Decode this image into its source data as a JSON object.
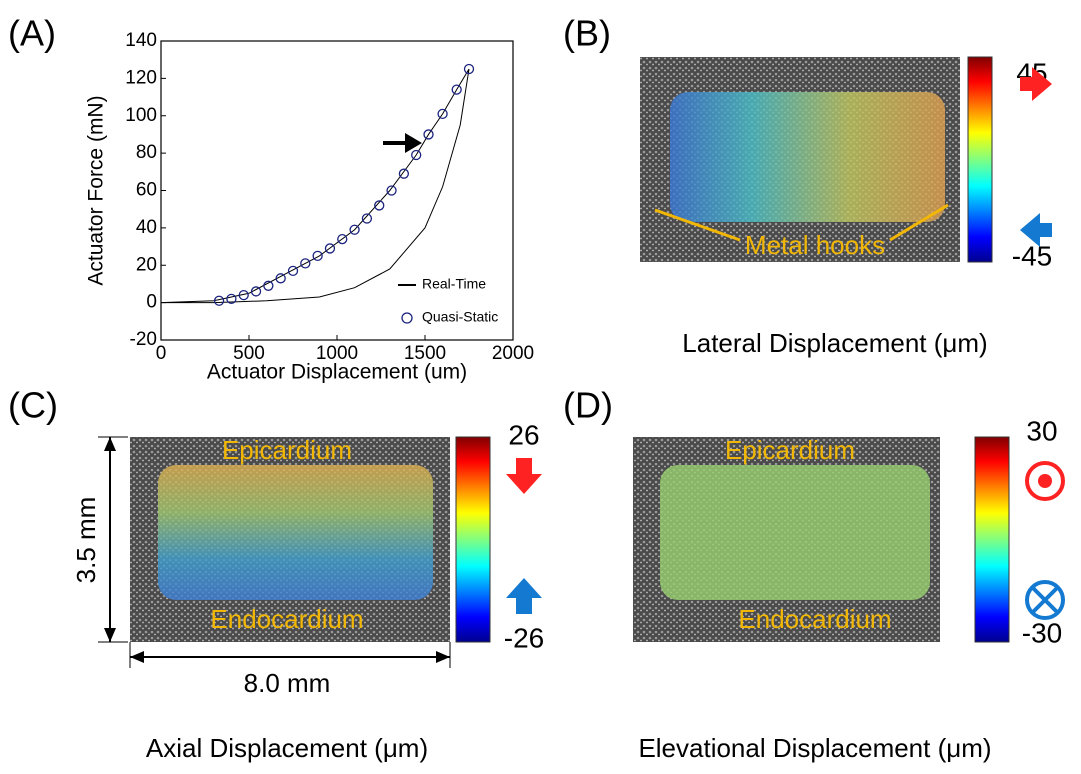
{
  "chart_data": {
    "type": "line",
    "x_label": "Actuator Displacement (um)",
    "y_label": "Actuator Force (mN)",
    "xlim": [
      0,
      2000
    ],
    "xticks": [
      0,
      500,
      1000,
      1500,
      2000
    ],
    "ylim": [
      -20,
      140
    ],
    "yticks": [
      -20,
      0,
      20,
      40,
      60,
      80,
      100,
      120,
      140
    ],
    "legend": "lower right",
    "series": [
      {
        "name": "Real-Time",
        "color": "#000000",
        "style": "line",
        "x": [
          0,
          300,
          500,
          700,
          900,
          1100,
          1300,
          1450,
          1520,
          1600,
          1680,
          1750,
          1700,
          1600,
          1500,
          1300,
          1100,
          900,
          600,
          300,
          0
        ],
        "values": [
          0,
          1,
          5,
          15,
          25,
          39,
          60,
          79,
          90,
          101,
          114,
          125,
          95,
          62,
          40,
          18,
          8,
          3,
          1,
          0,
          0
        ]
      },
      {
        "name": "Quasi-Static",
        "color": "#1a237e",
        "style": "marker",
        "x": [
          330,
          400,
          470,
          540,
          610,
          680,
          750,
          820,
          890,
          960,
          1030,
          1100,
          1170,
          1240,
          1310,
          1380,
          1450,
          1520,
          1600,
          1680,
          1750
        ],
        "values": [
          1,
          2,
          4,
          6,
          9,
          13,
          17,
          21,
          25,
          29,
          34,
          39,
          45,
          52,
          60,
          69,
          79,
          90,
          101,
          114,
          125
        ]
      }
    ]
  },
  "panels": [
    {
      "label": "(A)"
    },
    {
      "label": "(B)",
      "caption": "Lateral Displacement (μm)",
      "colorbar": {
        "max": 45,
        "min": -45
      },
      "annotation": "Metal hooks"
    },
    {
      "label": "(C)",
      "caption": "Axial Displacement (μm)",
      "colorbar": {
        "max": 26,
        "min": -26
      },
      "top": "Epicardium",
      "bottom": "Endocardium",
      "height": "3.5 mm",
      "width": "8.0 mm"
    },
    {
      "label": "(D)",
      "caption": "Elevational Displacement (μm)",
      "colorbar": {
        "max": 30,
        "min": -30
      },
      "top": "Epicardium",
      "bottom": "Endocardium"
    }
  ]
}
